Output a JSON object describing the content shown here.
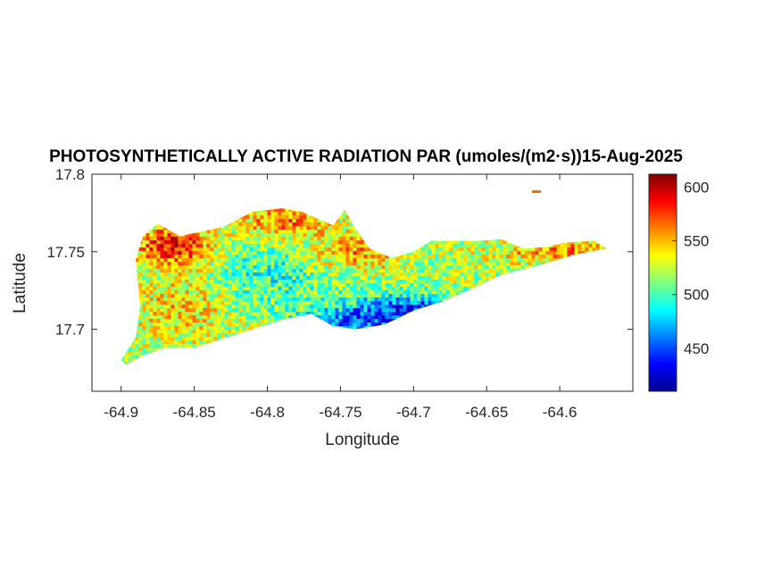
{
  "chart_data": {
    "type": "heatmap",
    "title": "PHOTOSYNTHETICALLY ACTIVE RADIATION PAR (umoles/(m2·s))15-Aug-2025",
    "xlabel": "Longitude",
    "ylabel": "Latitude",
    "xlim": [
      -64.92,
      -64.55
    ],
    "ylim": [
      17.66,
      17.8
    ],
    "x_ticks": [
      "-64.9",
      "-64.85",
      "-64.8",
      "-64.75",
      "-64.7",
      "-64.65",
      "-64.6"
    ],
    "x_tick_values": [
      -64.9,
      -64.85,
      -64.8,
      -64.75,
      -64.7,
      -64.65,
      -64.6
    ],
    "y_ticks": [
      "17.7",
      "17.75",
      "17.8"
    ],
    "y_tick_values": [
      17.7,
      17.75,
      17.8
    ],
    "colorbar": {
      "label": "",
      "range": [
        410,
        612
      ],
      "ticks": [
        "450",
        "500",
        "550",
        "600"
      ],
      "tick_values": [
        450,
        500,
        550,
        600
      ],
      "colormap": "jet"
    },
    "region_outline_lonlat": [
      [
        -64.9,
        17.68
      ],
      [
        -64.89,
        17.695
      ],
      [
        -64.887,
        17.715
      ],
      [
        -64.89,
        17.745
      ],
      [
        -64.885,
        17.76
      ],
      [
        -64.875,
        17.768
      ],
      [
        -64.86,
        17.76
      ],
      [
        -64.83,
        17.766
      ],
      [
        -64.81,
        17.776
      ],
      [
        -64.79,
        17.778
      ],
      [
        -64.777,
        17.776
      ],
      [
        -64.755,
        17.767
      ],
      [
        -64.747,
        17.777
      ],
      [
        -64.74,
        17.765
      ],
      [
        -64.73,
        17.752
      ],
      [
        -64.715,
        17.746
      ],
      [
        -64.7,
        17.75
      ],
      [
        -64.688,
        17.757
      ],
      [
        -64.672,
        17.757
      ],
      [
        -64.655,
        17.757
      ],
      [
        -64.64,
        17.758
      ],
      [
        -64.625,
        17.752
      ],
      [
        -64.61,
        17.753
      ],
      [
        -64.595,
        17.756
      ],
      [
        -64.576,
        17.757
      ],
      [
        -64.568,
        17.752
      ],
      [
        -64.59,
        17.748
      ],
      [
        -64.615,
        17.741
      ],
      [
        -64.64,
        17.735
      ],
      [
        -64.66,
        17.726
      ],
      [
        -64.68,
        17.718
      ],
      [
        -64.7,
        17.712
      ],
      [
        -64.72,
        17.703
      ],
      [
        -64.74,
        17.7
      ],
      [
        -64.755,
        17.702
      ],
      [
        -64.77,
        17.71
      ],
      [
        -64.79,
        17.706
      ],
      [
        -64.81,
        17.7
      ],
      [
        -64.83,
        17.694
      ],
      [
        -64.85,
        17.688
      ],
      [
        -64.87,
        17.688
      ],
      [
        -64.885,
        17.683
      ],
      [
        -64.897,
        17.677
      ]
    ],
    "value_zones": [
      {
        "area": "northwest coast",
        "value": 590
      },
      {
        "area": "north-central ridge",
        "value": 565
      },
      {
        "area": "interior west",
        "value": 530
      },
      {
        "area": "central interior",
        "value": 510
      },
      {
        "area": "south-central coast",
        "value": 470
      },
      {
        "area": "southeast shore",
        "value": 455
      },
      {
        "area": "east end",
        "value": 560
      }
    ],
    "value_range": [
      410,
      612
    ]
  }
}
